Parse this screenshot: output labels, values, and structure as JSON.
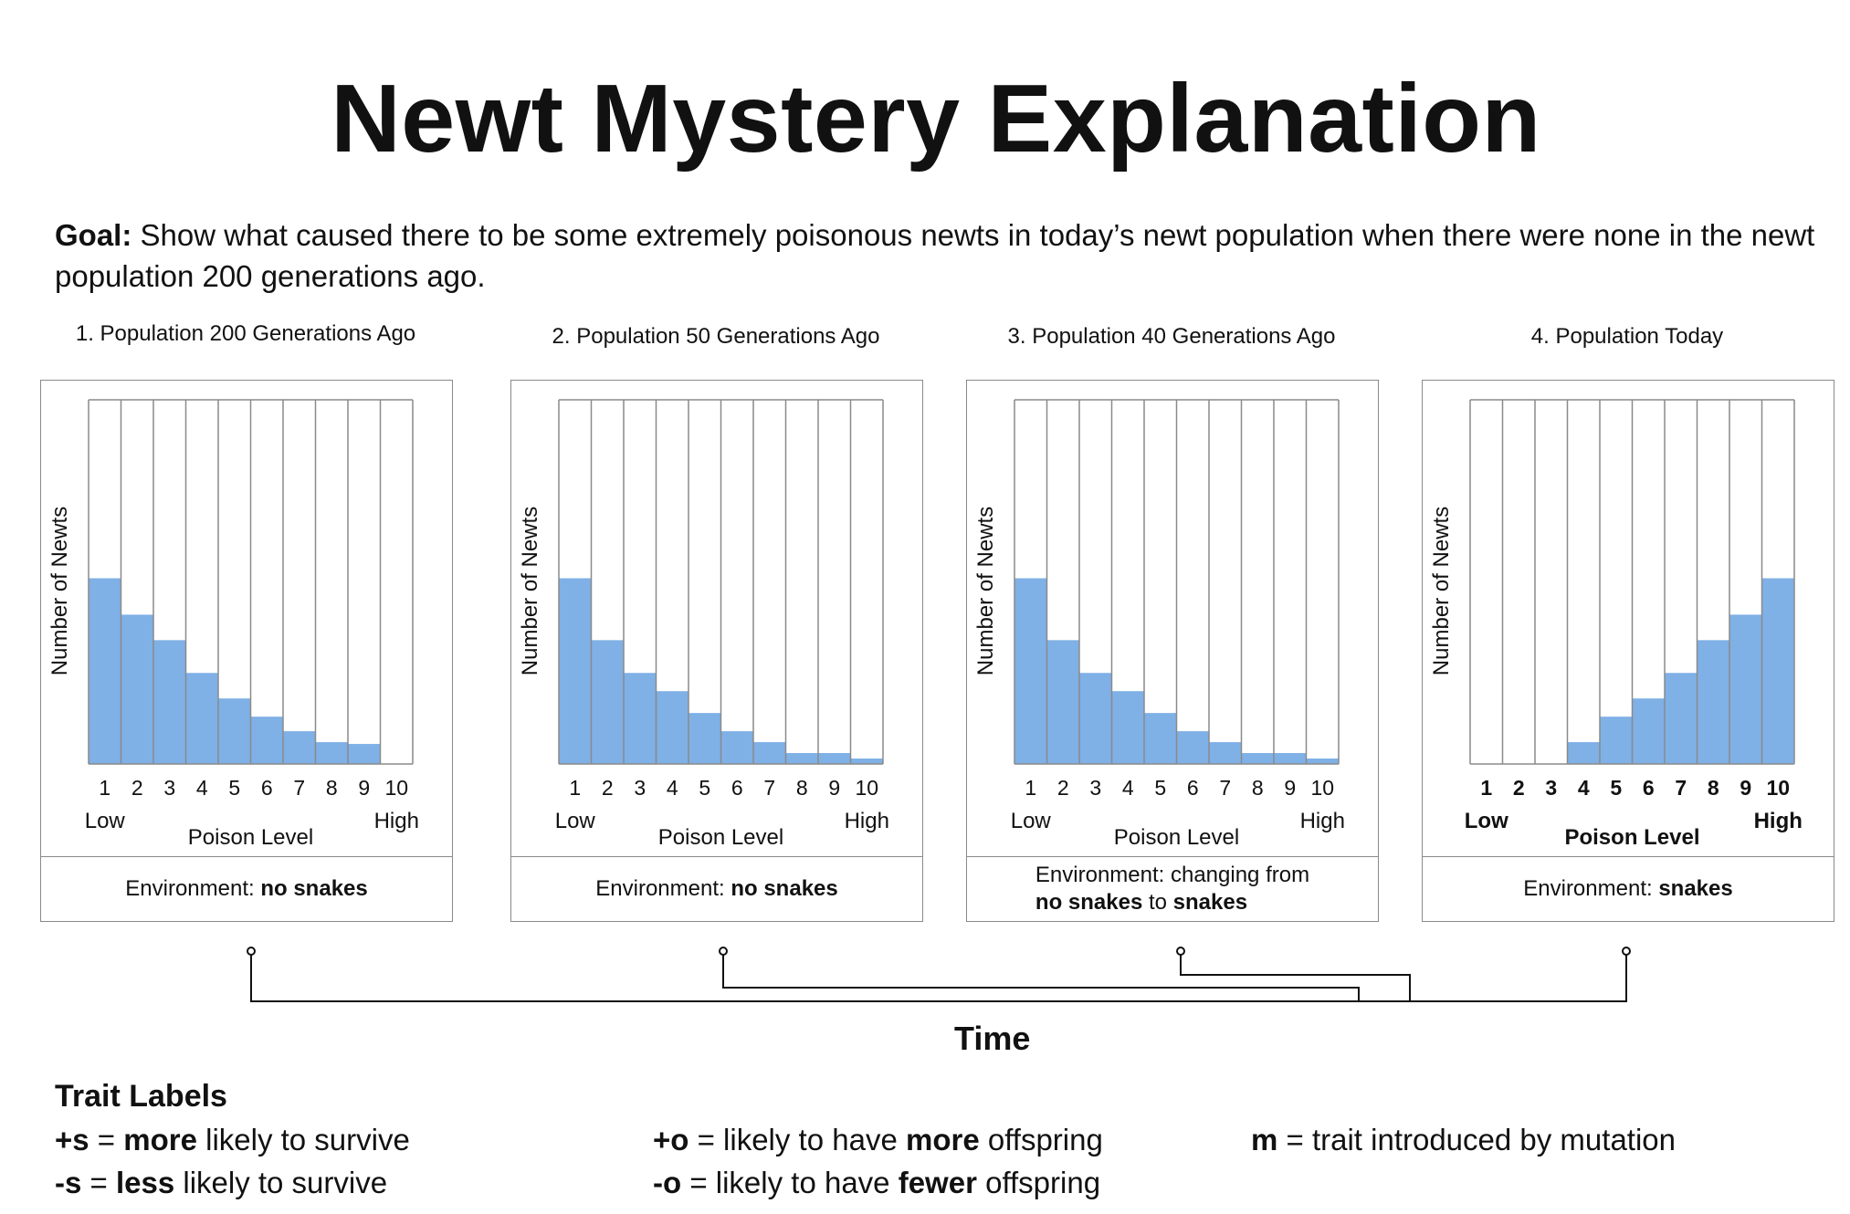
{
  "title": "Newt Mystery Explanation",
  "goal": {
    "label": "Goal:",
    "text": "Show what caused there to be some extremely poisonous newts in today’s newt population when there were none in the newt population 200 generations ago."
  },
  "colors": {
    "bar": "#7fb0e6",
    "grid": "#8a8a8a",
    "line": "#111111"
  },
  "chart_data": [
    {
      "type": "bar",
      "title": "1. Population 200 Generations Ago",
      "categories": [
        "1",
        "2",
        "3",
        "4",
        "5",
        "6",
        "7",
        "8",
        "9",
        "10"
      ],
      "values": [
        51,
        41,
        34,
        25,
        18,
        13,
        9,
        6,
        5.5,
        0
      ],
      "xlabel": "Poison Level",
      "ylabel": "Number of Newts",
      "x_low": "Low",
      "x_high": "High",
      "ylim": [
        0,
        100
      ],
      "grid": true,
      "environment": {
        "prefix": "Environment:",
        "value": "no snakes"
      }
    },
    {
      "type": "bar",
      "title": "2. Population 50 Generations Ago",
      "categories": [
        "1",
        "2",
        "3",
        "4",
        "5",
        "6",
        "7",
        "8",
        "9",
        "10"
      ],
      "values": [
        51,
        34,
        25,
        20,
        14,
        9,
        6,
        3,
        3,
        1.5
      ],
      "xlabel": "Poison Level",
      "ylabel": "Number of Newts",
      "x_low": "Low",
      "x_high": "High",
      "ylim": [
        0,
        100
      ],
      "grid": true,
      "environment": {
        "prefix": "Environment:",
        "value": "no snakes"
      }
    },
    {
      "type": "bar",
      "title": "3. Population 40 Generations Ago",
      "categories": [
        "1",
        "2",
        "3",
        "4",
        "5",
        "6",
        "7",
        "8",
        "9",
        "10"
      ],
      "values": [
        51,
        34,
        25,
        20,
        14,
        9,
        6,
        3,
        3,
        1.5
      ],
      "xlabel": "Poison Level",
      "ylabel": "Number of Newts",
      "x_low": "Low",
      "x_high": "High",
      "ylim": [
        0,
        100
      ],
      "grid": true,
      "environment": {
        "prefix": "Environment: changing from",
        "value": "no snakes",
        "mid": "to",
        "value2": "snakes"
      }
    },
    {
      "type": "bar",
      "title": "4. Population Today",
      "categories": [
        "1",
        "2",
        "3",
        "4",
        "5",
        "6",
        "7",
        "8",
        "9",
        "10"
      ],
      "values": [
        0,
        0,
        0,
        6,
        13,
        18,
        25,
        34,
        41,
        51
      ],
      "xlabel": "Poison Level",
      "ylabel": "Number of Newts",
      "x_low": "Low",
      "x_high": "High",
      "ylim": [
        0,
        100
      ],
      "grid": true,
      "environment": {
        "prefix": "Environment:",
        "value": "snakes"
      }
    }
  ],
  "timeline": {
    "label": "Time"
  },
  "traits": {
    "heading": "Trait Labels",
    "items": [
      {
        "symbol": "+s",
        "pre": " = ",
        "bold": "more",
        "post": " likely to survive"
      },
      {
        "symbol": "-s",
        "pre": " = ",
        "bold": "less",
        "post": " likely to survive"
      },
      {
        "symbol": "+o",
        "pre": " = likely to have ",
        "bold": "more",
        "post": " offspring"
      },
      {
        "symbol": "-o",
        "pre": " = likely to have ",
        "bold": "fewer",
        "post": " offspring"
      },
      {
        "symbol": "m",
        "pre": " = trait introduced by mutation",
        "bold": "",
        "post": ""
      }
    ]
  }
}
